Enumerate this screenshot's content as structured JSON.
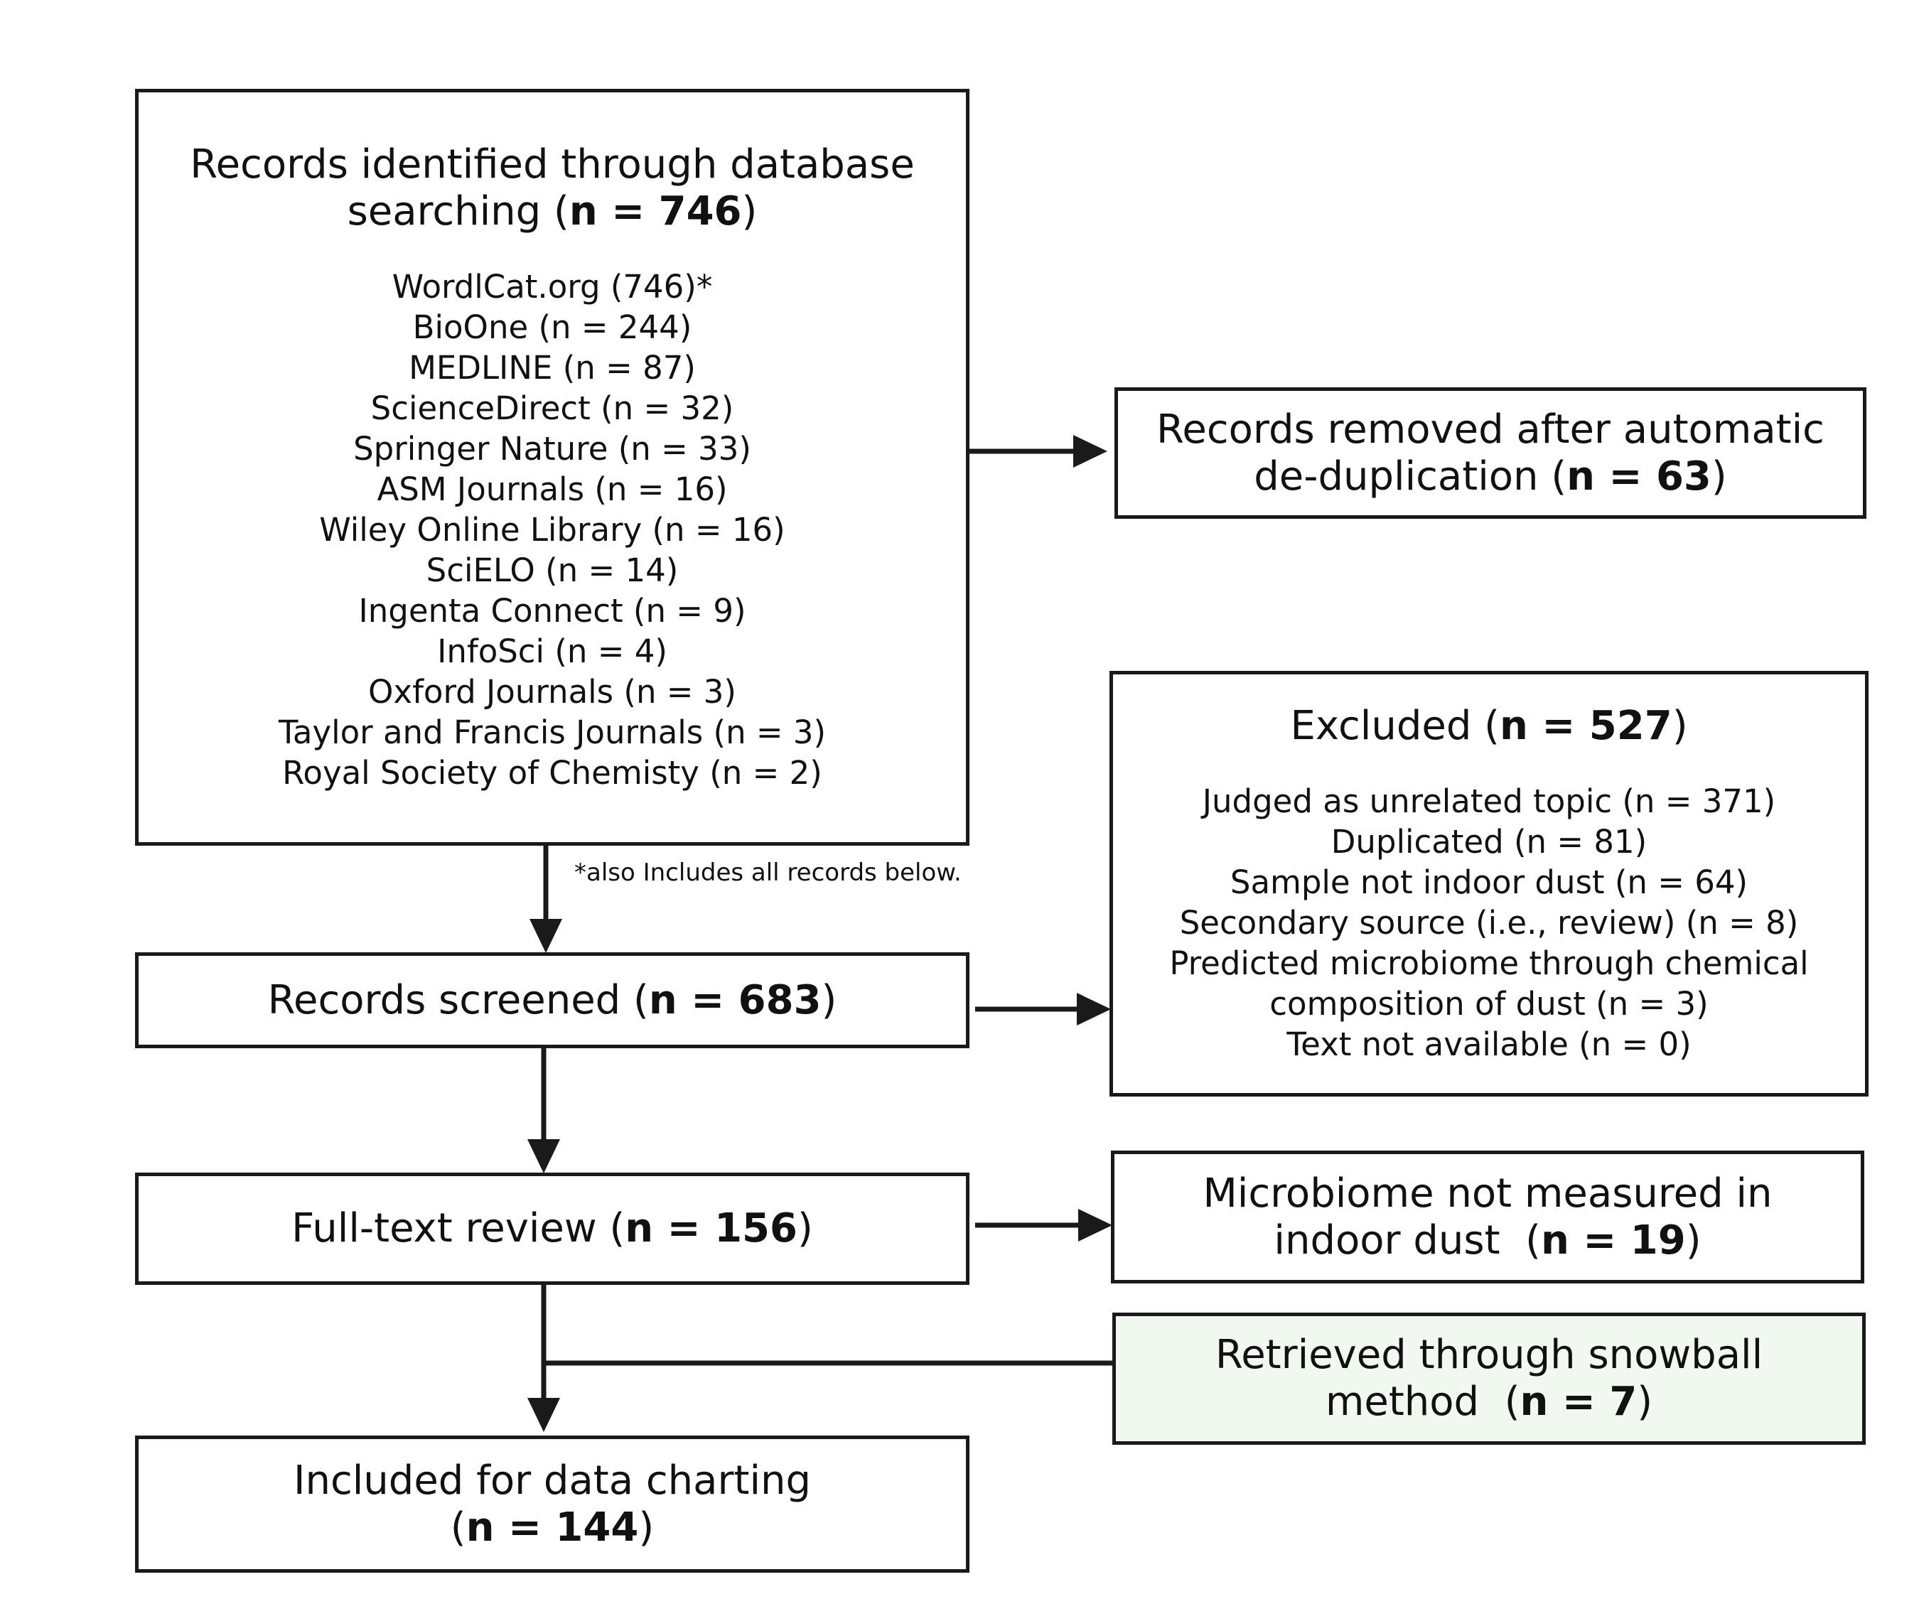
{
  "identified": {
    "title_line1": "Records identified through database",
    "title_line2_pre": "searching (",
    "title_line2_bold": "n = 746",
    "title_line2_post": ")",
    "sources": [
      "WordlCat.org (746)*",
      "BioOne (n = 244)",
      "MEDLINE (n = 87)",
      "ScienceDirect (n = 32)",
      "Springer Nature (n = 33)",
      "ASM Journals (n = 16)",
      "Wiley Online Library (n = 16)",
      "SciELO (n = 14)",
      "Ingenta Connect (n = 9)",
      "InfoSci (n = 4)",
      "Oxford Journals (n = 3)",
      "Taylor and Francis Journals (n = 3)",
      "Royal Society of Chemisty (n = 2)"
    ],
    "footnote": "*also Includes all records below."
  },
  "removed": {
    "line1": "Records removed after automatic",
    "line2_pre": "de-duplication (",
    "line2_bold": "n = 63",
    "line2_post": ")"
  },
  "screened": {
    "pre": "Records screened (",
    "bold": "n = 683",
    "post": ")"
  },
  "excluded": {
    "title_pre": "Excluded (",
    "title_bold": "n = 527",
    "title_post": ")",
    "reasons": [
      "Judged as unrelated topic (n = 371)",
      "Duplicated (n = 81)",
      "Sample not indoor dust (n = 64)",
      "Secondary source (i.e., review) (n = 8)",
      "Predicted microbiome through chemical",
      "composition of dust (n = 3)",
      "Text not available (n = 0)"
    ]
  },
  "fulltext": {
    "pre": "Full-text review (",
    "bold": "n = 156",
    "post": ")"
  },
  "not_measured": {
    "line1": "Microbiome not measured in",
    "line2_pre": "indoor dust  (",
    "line2_bold": "n = 19",
    "line2_post": ")"
  },
  "snowball": {
    "line1": "Retrieved through snowball",
    "line2_pre": "method  (",
    "line2_bold": "n = 7",
    "line2_post": ")",
    "fill_color": "#f0f8ef"
  },
  "included": {
    "line1": "Included for data charting",
    "line2_pre": "(",
    "line2_bold": "n = 144",
    "line2_post": ")"
  },
  "colors": {
    "stroke": "#1a1a1a",
    "background": "#ffffff"
  }
}
